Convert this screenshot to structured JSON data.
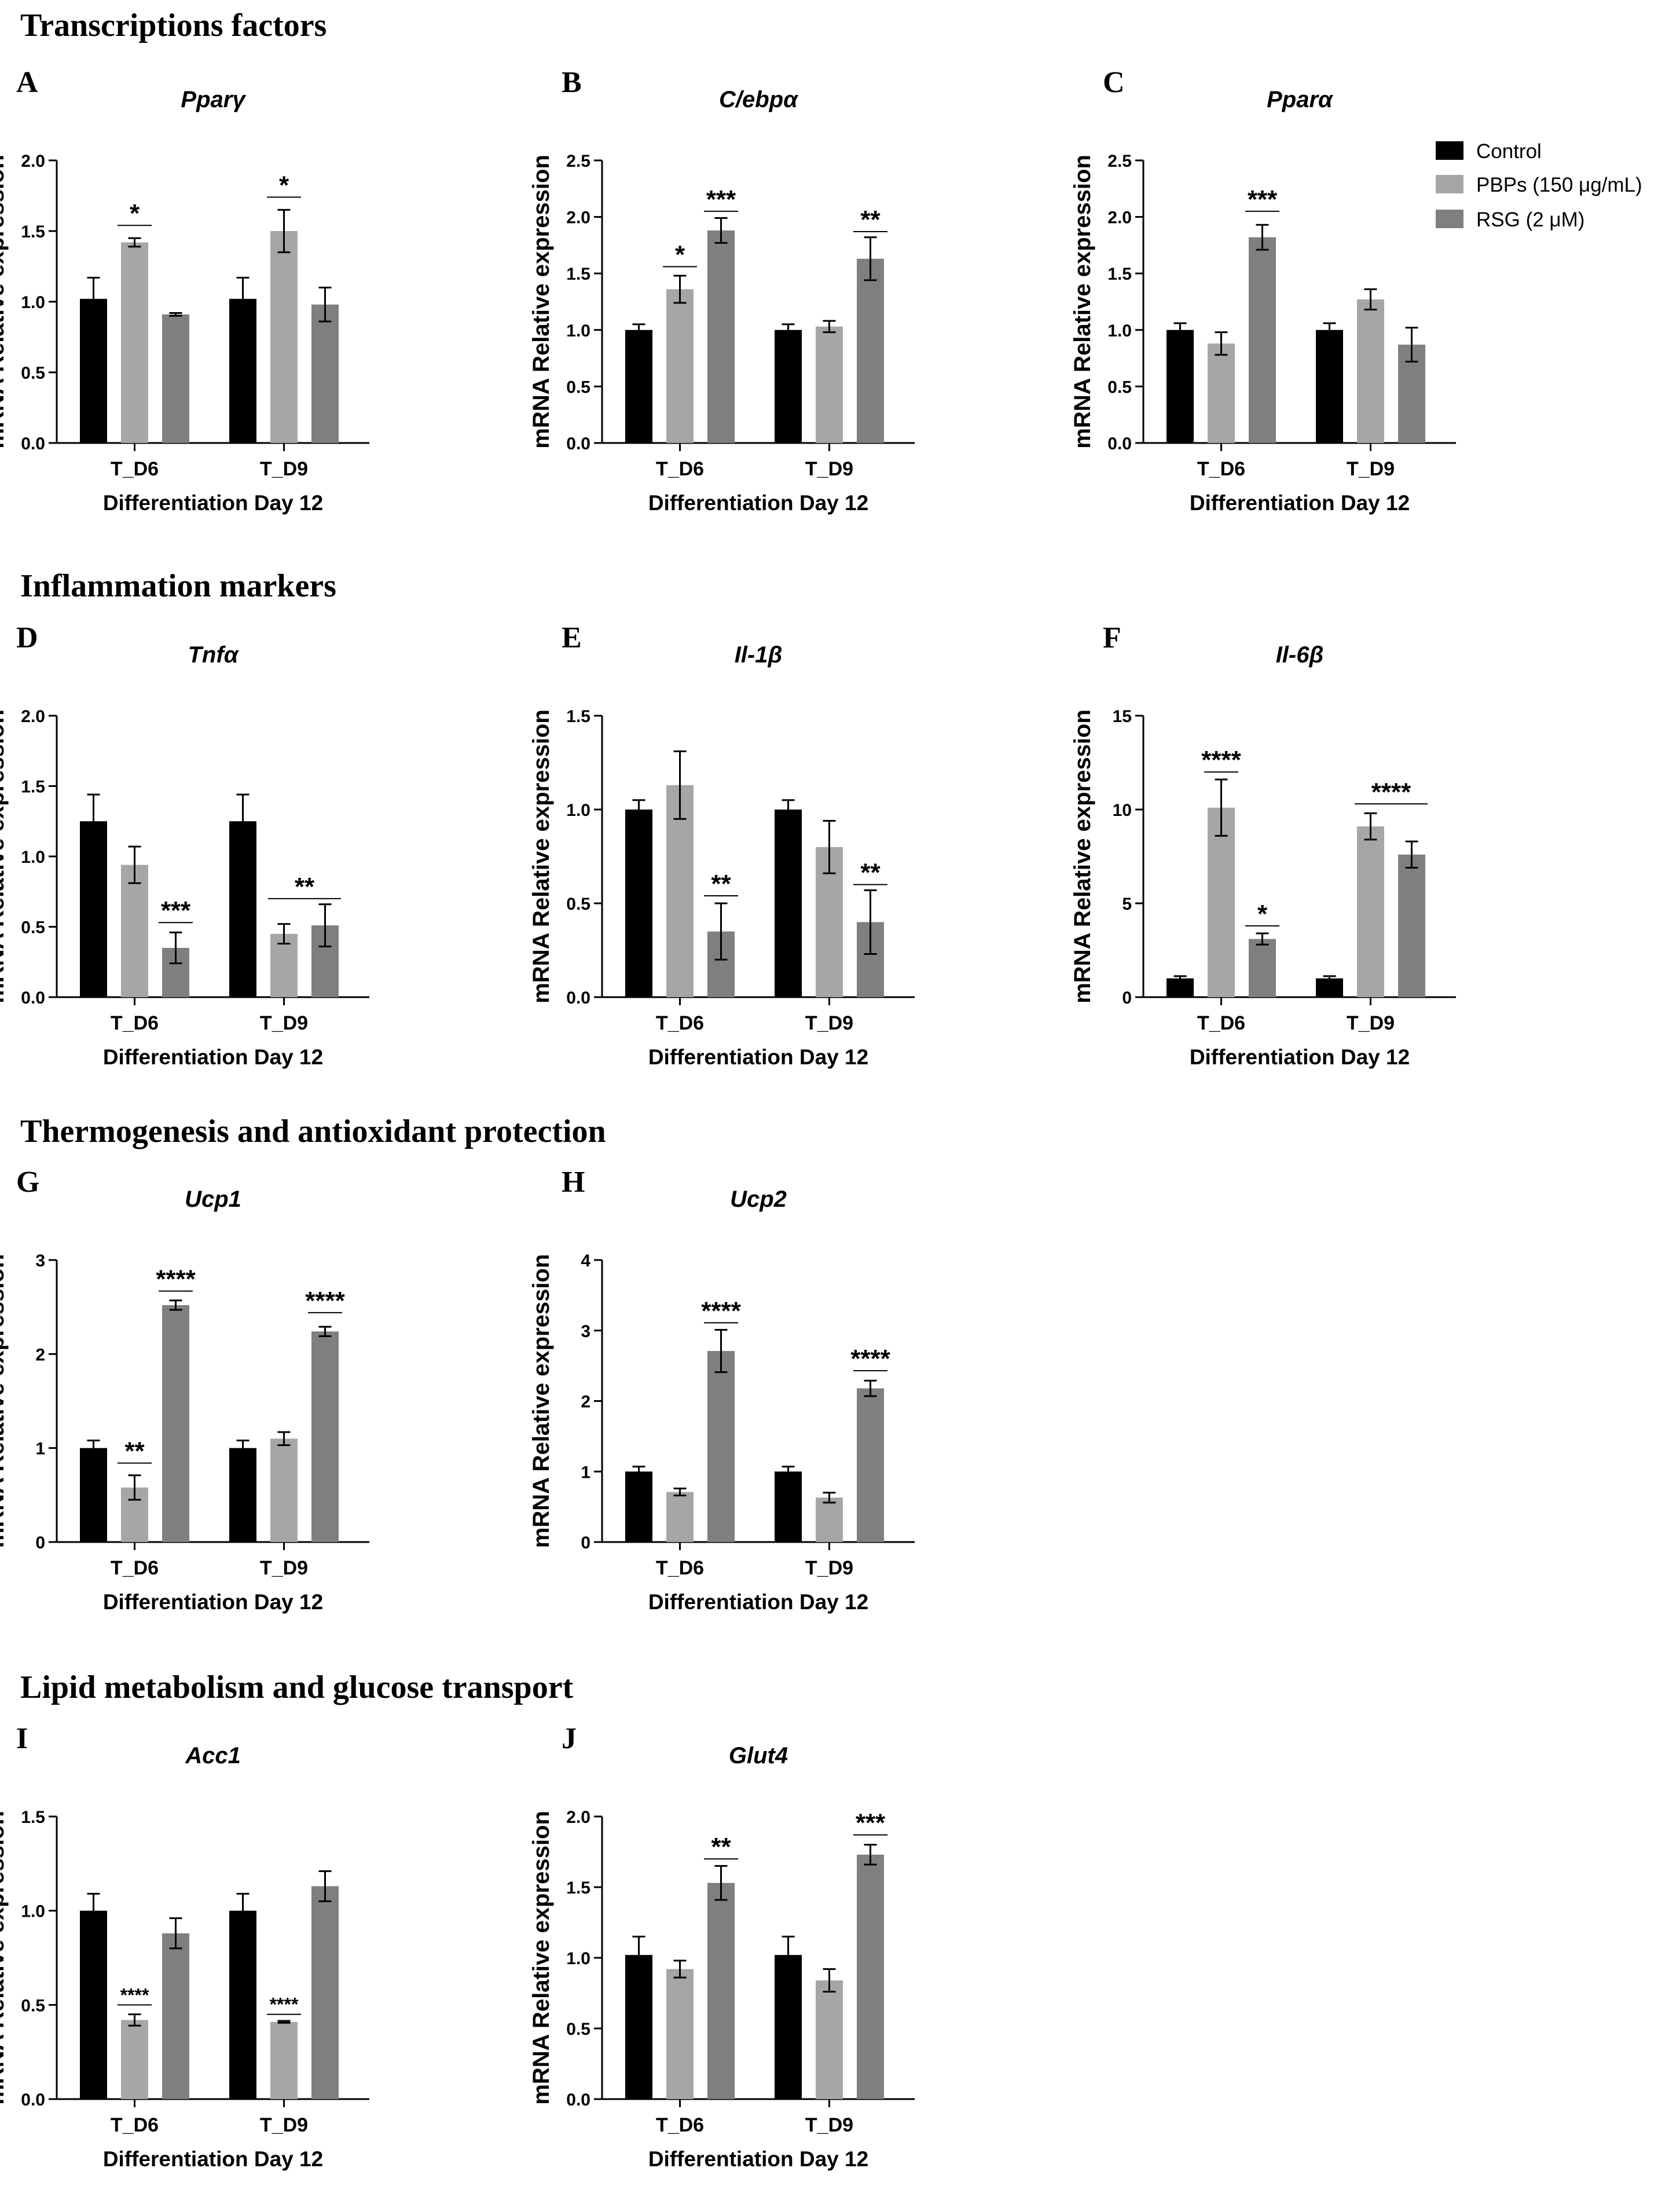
{
  "sections": [
    {
      "title": "Transcriptions factors"
    },
    {
      "title": "Inflammation markers"
    },
    {
      "title": "Thermogenesis and antioxidant protection"
    },
    {
      "title": "Lipid metabolism and glucose transport"
    }
  ],
  "colors": {
    "Control": "#000000",
    "PBPs": "#a6a6a8",
    "RSG": "#7f7f7f"
  },
  "legend": {
    "placement": "top-right",
    "entries": [
      {
        "label": "Control",
        "color": "#000000"
      },
      {
        "label": "PBPs (150 μg/mL)",
        "color": "#a6a6a8"
      },
      {
        "label": "RSG (2 μM)",
        "color": "#7f7f7f"
      }
    ]
  },
  "chart_data": [
    {
      "panel": "A",
      "type": "bar",
      "title": "Pparγ",
      "xlabel": "Differentiation Day 12",
      "ylabel": "mRNA Relative expression",
      "categories": [
        "T_D6",
        "T_D9"
      ],
      "ylim": [
        0,
        2.0
      ],
      "yticks": [
        "0.0",
        "0.5",
        "1.0",
        "1.5",
        "2.0"
      ],
      "series": [
        {
          "name": "Control",
          "values": [
            1.02,
            1.02
          ],
          "errors": [
            0.15,
            0.15
          ]
        },
        {
          "name": "PBPs (150 μg/mL)",
          "values": [
            1.42,
            1.5
          ],
          "errors": [
            0.03,
            0.15
          ]
        },
        {
          "name": "RSG (2 μM)",
          "values": [
            0.91,
            0.98
          ],
          "errors": [
            0.01,
            0.12
          ]
        }
      ],
      "annotations": [
        {
          "text": "*",
          "category": 0,
          "series": 1,
          "level": 1.54
        },
        {
          "text": "*",
          "category": 1,
          "series": 1,
          "level": 1.74
        }
      ]
    },
    {
      "panel": "B",
      "type": "bar",
      "title": "C/ebpα",
      "xlabel": "Differentiation Day 12",
      "ylabel": "mRNA Relative expression",
      "categories": [
        "T_D6",
        "T_D9"
      ],
      "ylim": [
        0,
        2.5
      ],
      "yticks": [
        "0.0",
        "0.5",
        "1.0",
        "1.5",
        "2.0",
        "2.5"
      ],
      "series": [
        {
          "name": "Control",
          "values": [
            1.0,
            1.0
          ],
          "errors": [
            0.05,
            0.05
          ]
        },
        {
          "name": "PBPs (150 μg/mL)",
          "values": [
            1.36,
            1.03
          ],
          "errors": [
            0.12,
            0.05
          ]
        },
        {
          "name": "RSG (2 μM)",
          "values": [
            1.88,
            1.63
          ],
          "errors": [
            0.11,
            0.19
          ]
        }
      ],
      "annotations": [
        {
          "text": "*",
          "category": 0,
          "series": 1,
          "level": 1.56
        },
        {
          "text": "***",
          "category": 0,
          "series": 2,
          "level": 2.05
        },
        {
          "text": "**",
          "category": 1,
          "series": 2,
          "level": 1.87
        }
      ]
    },
    {
      "panel": "C",
      "type": "bar",
      "title": "Pparα",
      "xlabel": "Differentiation Day 12",
      "ylabel": "mRNA Relative expression",
      "categories": [
        "T_D6",
        "T_D9"
      ],
      "ylim": [
        0,
        2.5
      ],
      "yticks": [
        "0.0",
        "0.5",
        "1.0",
        "1.5",
        "2.0",
        "2.5"
      ],
      "series": [
        {
          "name": "Control",
          "values": [
            1.0,
            1.0
          ],
          "errors": [
            0.06,
            0.06
          ]
        },
        {
          "name": "PBPs (150 μg/mL)",
          "values": [
            0.88,
            1.27
          ],
          "errors": [
            0.1,
            0.09
          ]
        },
        {
          "name": "RSG (2 μM)",
          "values": [
            1.82,
            0.87
          ],
          "errors": [
            0.11,
            0.15
          ]
        }
      ],
      "annotations": [
        {
          "text": "***",
          "category": 0,
          "series": 2,
          "level": 2.05
        }
      ]
    },
    {
      "panel": "D",
      "type": "bar",
      "title": "Tnfα",
      "xlabel": "Differentiation Day 12",
      "ylabel": "mRNA Relative expression",
      "categories": [
        "T_D6",
        "T_D9"
      ],
      "ylim": [
        0,
        2.0
      ],
      "yticks": [
        "0.0",
        "0.5",
        "1.0",
        "1.5",
        "2.0"
      ],
      "series": [
        {
          "name": "Control",
          "values": [
            1.25,
            1.25
          ],
          "errors": [
            0.19,
            0.19
          ]
        },
        {
          "name": "PBPs (150 μg/mL)",
          "values": [
            0.94,
            0.45
          ],
          "errors": [
            0.13,
            0.07
          ]
        },
        {
          "name": "RSG (2 μM)",
          "values": [
            0.35,
            0.51
          ],
          "errors": [
            0.11,
            0.15
          ]
        }
      ],
      "annotations": [
        {
          "text": "***",
          "category": 0,
          "series": 2,
          "level": 0.53
        },
        {
          "text": "**",
          "category": 1,
          "fromSeries": 1,
          "toSeries": 2,
          "level": 0.7
        }
      ]
    },
    {
      "panel": "E",
      "type": "bar",
      "title": "Il-1β",
      "xlabel": "Differentiation Day 12",
      "ylabel": "mRNA Relative expression",
      "categories": [
        "T_D6",
        "T_D9"
      ],
      "ylim": [
        0,
        1.5
      ],
      "yticks": [
        "0.0",
        "0.5",
        "1.0",
        "1.5"
      ],
      "series": [
        {
          "name": "Control",
          "values": [
            1.0,
            1.0
          ],
          "errors": [
            0.05,
            0.05
          ]
        },
        {
          "name": "PBPs (150 μg/mL)",
          "values": [
            1.13,
            0.8
          ],
          "errors": [
            0.18,
            0.14
          ]
        },
        {
          "name": "RSG (2 μM)",
          "values": [
            0.35,
            0.4
          ],
          "errors": [
            0.15,
            0.17
          ]
        }
      ],
      "annotations": [
        {
          "text": "**",
          "category": 0,
          "series": 2,
          "level": 0.54
        },
        {
          "text": "**",
          "category": 1,
          "series": 2,
          "level": 0.6
        }
      ]
    },
    {
      "panel": "F",
      "type": "bar",
      "title": "Il-6β",
      "xlabel": "Differentiation Day 12",
      "ylabel": "mRNA Relative expression",
      "categories": [
        "T_D6",
        "T_D9"
      ],
      "ylim": [
        0,
        15
      ],
      "yticks": [
        "0",
        "5",
        "10",
        "15"
      ],
      "series": [
        {
          "name": "Control",
          "values": [
            1.0,
            1.0
          ],
          "errors": [
            0.12,
            0.12
          ]
        },
        {
          "name": "PBPs (150 μg/mL)",
          "values": [
            10.1,
            9.1
          ],
          "errors": [
            1.5,
            0.7
          ]
        },
        {
          "name": "RSG (2 μM)",
          "values": [
            3.1,
            7.6
          ],
          "errors": [
            0.3,
            0.7
          ]
        }
      ],
      "annotations": [
        {
          "text": "****",
          "category": 0,
          "series": 1,
          "level": 12.0
        },
        {
          "text": "*",
          "category": 0,
          "series": 2,
          "level": 3.8
        },
        {
          "text": "****",
          "category": 1,
          "fromSeries": 1,
          "toSeries": 2,
          "level": 10.3
        }
      ]
    },
    {
      "panel": "G",
      "type": "bar",
      "title": "Ucp1",
      "xlabel": "Differentiation Day 12",
      "ylabel": "mRNA Relative expression",
      "categories": [
        "T_D6",
        "T_D9"
      ],
      "ylim": [
        0,
        3
      ],
      "yticks": [
        "0",
        "1",
        "2",
        "3"
      ],
      "series": [
        {
          "name": "Control",
          "values": [
            1.0,
            1.0
          ],
          "errors": [
            0.08,
            0.08
          ]
        },
        {
          "name": "PBPs (150 μg/mL)",
          "values": [
            0.58,
            1.1
          ],
          "errors": [
            0.13,
            0.07
          ]
        },
        {
          "name": "RSG (2 μM)",
          "values": [
            2.52,
            2.24
          ],
          "errors": [
            0.05,
            0.05
          ]
        }
      ],
      "annotations": [
        {
          "text": "**",
          "category": 0,
          "series": 1,
          "level": 0.84
        },
        {
          "text": "****",
          "category": 0,
          "series": 2,
          "level": 2.67
        },
        {
          "text": "****",
          "category": 1,
          "series": 2,
          "level": 2.44
        }
      ]
    },
    {
      "panel": "H",
      "type": "bar",
      "title": "Ucp2",
      "xlabel": "Differentiation Day 12",
      "ylabel": "mRNA Relative expression",
      "categories": [
        "T_D6",
        "T_D9"
      ],
      "ylim": [
        0,
        4
      ],
      "yticks": [
        "0",
        "1",
        "2",
        "3",
        "4"
      ],
      "series": [
        {
          "name": "Control",
          "values": [
            1.0,
            1.0
          ],
          "errors": [
            0.07,
            0.07
          ]
        },
        {
          "name": "PBPs (150 μg/mL)",
          "values": [
            0.71,
            0.63
          ],
          "errors": [
            0.05,
            0.07
          ]
        },
        {
          "name": "RSG (2 μM)",
          "values": [
            2.71,
            2.18
          ],
          "errors": [
            0.3,
            0.11
          ]
        }
      ],
      "annotations": [
        {
          "text": "****",
          "category": 0,
          "series": 2,
          "level": 3.11
        },
        {
          "text": "****",
          "category": 1,
          "series": 2,
          "level": 2.43
        }
      ]
    },
    {
      "panel": "I",
      "type": "bar",
      "title": "Acc1",
      "xlabel": "Differentiation Day 12",
      "ylabel": "mRNA Relative expression",
      "categories": [
        "T_D6",
        "T_D9"
      ],
      "ylim": [
        0,
        1.5
      ],
      "yticks": [
        "0.0",
        "0.5",
        "1.0",
        "1.5"
      ],
      "series": [
        {
          "name": "Control",
          "values": [
            1.0,
            1.0
          ],
          "errors": [
            0.09,
            0.09
          ]
        },
        {
          "name": "PBPs (150 μg/mL)",
          "values": [
            0.42,
            0.41
          ],
          "errors": [
            0.03,
            0.005
          ]
        },
        {
          "name": "RSG (2 μM)",
          "values": [
            0.88,
            1.13
          ],
          "errors": [
            0.08,
            0.08
          ]
        }
      ],
      "annotations": [
        {
          "text": "****",
          "category": 0,
          "series": 1,
          "level": 0.5,
          "small": true
        },
        {
          "text": "****",
          "category": 1,
          "series": 1,
          "level": 0.45,
          "small": true
        }
      ]
    },
    {
      "panel": "J",
      "type": "bar",
      "title": "Glut4",
      "xlabel": "Differentiation Day 12",
      "ylabel": "mRNA Relative expression",
      "categories": [
        "T_D6",
        "T_D9"
      ],
      "ylim": [
        0,
        2.0
      ],
      "yticks": [
        "0.0",
        "0.5",
        "1.0",
        "1.5",
        "2.0"
      ],
      "series": [
        {
          "name": "Control",
          "values": [
            1.02,
            1.02
          ],
          "errors": [
            0.13,
            0.13
          ]
        },
        {
          "name": "PBPs (150 μg/mL)",
          "values": [
            0.92,
            0.84
          ],
          "errors": [
            0.06,
            0.08
          ]
        },
        {
          "name": "RSG (2 μM)",
          "values": [
            1.53,
            1.73
          ],
          "errors": [
            0.12,
            0.07
          ]
        }
      ],
      "annotations": [
        {
          "text": "**",
          "category": 0,
          "series": 2,
          "level": 1.7
        },
        {
          "text": "***",
          "category": 1,
          "series": 2,
          "level": 1.87
        }
      ]
    }
  ]
}
